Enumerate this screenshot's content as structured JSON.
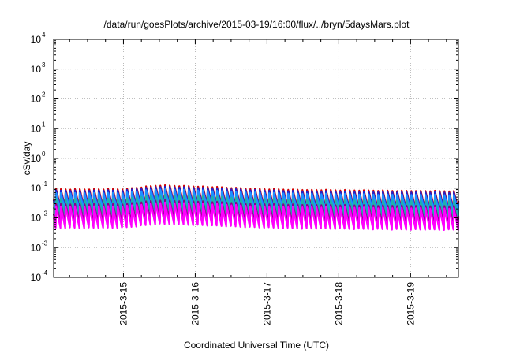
{
  "chart_data": {
    "type": "line",
    "title": "/data/run/goesPlots/archive/2015-03-19/16:00/flux/../bryn/5daysMars.plot",
    "xlabel": "Coordinated Universal Time (UTC)",
    "ylabel": "cSv/day",
    "yscale": "log",
    "ylim": [
      0.0001,
      10000
    ],
    "xlim": [
      "2015-03-14T00:40",
      "2015-03-19T16:00"
    ],
    "x_ticks": [
      "2015-3-15",
      "2015-3-16",
      "2015-3-17",
      "2015-3-18",
      "2015-3-19"
    ],
    "y_ticks": [
      {
        "base": "10",
        "exp": "4"
      },
      {
        "base": "10",
        "exp": "3"
      },
      {
        "base": "10",
        "exp": "2"
      },
      {
        "base": "10",
        "exp": "1"
      },
      {
        "base": "10",
        "exp": "0"
      },
      {
        "base": "10",
        "exp": "-1"
      },
      {
        "base": "10",
        "exp": "-2"
      },
      {
        "base": "10",
        "exp": "-3"
      },
      {
        "base": "10",
        "exp": "-4"
      }
    ],
    "grid": true,
    "pattern": "sawtooth, ~95 minute orbital period: sharp rise then exponential decay",
    "series": [
      {
        "color": "#d40000",
        "peak": 0.095,
        "trough": 0.022
      },
      {
        "color": "#2222cc",
        "peak": 0.085,
        "trough": 0.02
      },
      {
        "color": "#1e90ff",
        "peak": 0.07,
        "trough": 0.018
      },
      {
        "color": "#20b2aa",
        "peak": 0.045,
        "trough": 0.012
      },
      {
        "color": "#8b008b",
        "peak": 0.03,
        "trough": 0.0065
      },
      {
        "color": "#ff00ff",
        "peak": 0.025,
        "trough": 0.0045
      }
    ],
    "envelope": [
      {
        "date": "2015-03-14",
        "factor": 1.0
      },
      {
        "date": "2015-03-15",
        "factor": 1.0
      },
      {
        "date": "2015-03-15T12:00",
        "factor": 1.35
      },
      {
        "date": "2015-03-16",
        "factor": 1.25
      },
      {
        "date": "2015-03-16T18:00",
        "factor": 1.05
      },
      {
        "date": "2015-03-17T12:00",
        "factor": 0.95
      },
      {
        "date": "2015-03-18T12:00",
        "factor": 0.9
      },
      {
        "date": "2015-03-19T16:00",
        "factor": 0.85
      }
    ]
  }
}
